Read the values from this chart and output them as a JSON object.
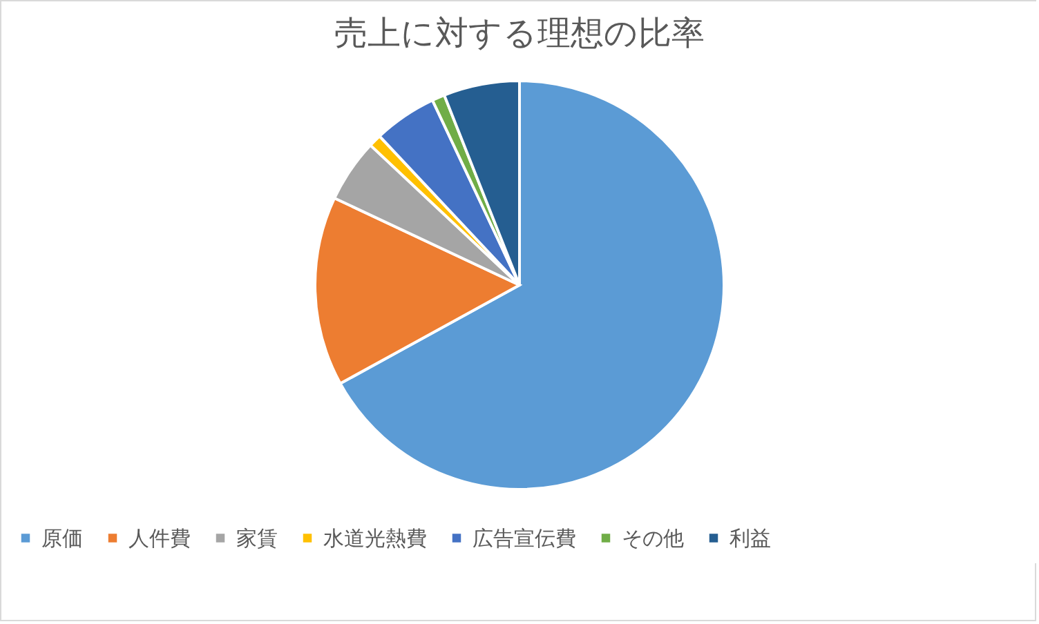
{
  "chart_data": {
    "type": "pie",
    "title": "売上に対する理想の比率",
    "categories": [
      "原価",
      "人件費",
      "家賃",
      "水道光熱費",
      "広告宣伝費",
      "その他",
      "利益"
    ],
    "values": [
      67,
      15,
      5,
      1,
      5,
      1,
      6
    ],
    "colors": [
      "#5b9bd5",
      "#ed7d31",
      "#a5a5a5",
      "#ffc000",
      "#4472c4",
      "#70ad47",
      "#255e91"
    ],
    "legend": "bottom"
  }
}
